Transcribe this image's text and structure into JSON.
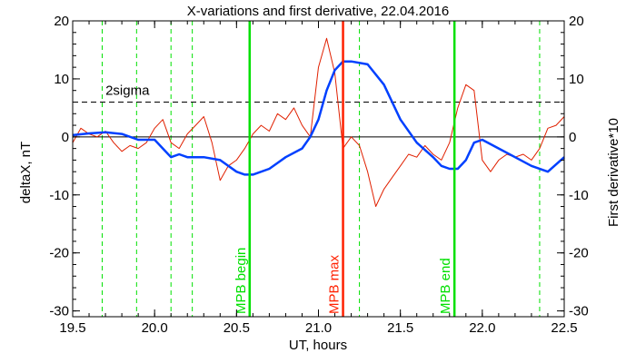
{
  "chart_data": {
    "type": "line",
    "title": "X-variations and first derivative, 22.04.2016",
    "xlabel": "UT, hours",
    "ylabel_left": "deltaX, nT",
    "ylabel_right": "First derivative*10",
    "xlim": [
      19.5,
      22.5
    ],
    "ylim": [
      -31,
      20
    ],
    "x_ticks": [
      {
        "v": 19.5,
        "label": "19.5"
      },
      {
        "v": 20.0,
        "label": "20.0"
      },
      {
        "v": 20.5,
        "label": "20.5"
      },
      {
        "v": 21.0,
        "label": "21.0"
      },
      {
        "v": 21.5,
        "label": "21.5"
      },
      {
        "v": 22.0,
        "label": "22.0"
      },
      {
        "v": 22.5,
        "label": "22.5"
      }
    ],
    "y_ticks": [
      {
        "v": 20,
        "label": "20"
      },
      {
        "v": 10,
        "label": "10"
      },
      {
        "v": 0,
        "label": "0"
      },
      {
        "v": -10,
        "label": "-10"
      },
      {
        "v": -20,
        "label": "-20"
      },
      {
        "v": -30,
        "label": "-30"
      }
    ],
    "colors": {
      "deltax": "#0040ff",
      "derivative": "#e02000",
      "mpb": "#00e000",
      "mpb_max": "#ff2000",
      "dashed_green": "#00e000",
      "right_axis_label": "#e02000"
    },
    "threshold": {
      "label": "2sigma",
      "y": 6
    },
    "zero_line": 0,
    "markers": [
      {
        "x": 20.58,
        "label": "MPB begin",
        "kind": "mpb"
      },
      {
        "x": 21.15,
        "label": "MPB max",
        "kind": "max"
      },
      {
        "x": 21.83,
        "label": "MPB end",
        "kind": "mpb"
      }
    ],
    "dashed_markers": [
      19.68,
      19.89,
      20.1,
      20.23,
      21.25,
      22.35
    ],
    "series": [
      {
        "key": "deltax",
        "x": [
          19.5,
          19.6,
          19.7,
          19.8,
          19.9,
          20.0,
          20.05,
          20.1,
          20.15,
          20.2,
          20.3,
          20.4,
          20.5,
          20.55,
          20.6,
          20.7,
          20.75,
          20.8,
          20.9,
          20.95,
          21.0,
          21.05,
          21.1,
          21.15,
          21.2,
          21.3,
          21.4,
          21.5,
          21.6,
          21.7,
          21.75,
          21.8,
          21.85,
          21.9,
          21.95,
          22.0,
          22.1,
          22.2,
          22.3,
          22.4,
          22.5
        ],
        "y": [
          0.3,
          0.6,
          0.8,
          0.5,
          -0.5,
          -0.5,
          -2.0,
          -3.5,
          -3.0,
          -3.5,
          -3.5,
          -4.0,
          -6.0,
          -6.5,
          -6.5,
          -5.5,
          -4.5,
          -3.5,
          -2.0,
          0.0,
          3.0,
          8.0,
          11.5,
          13.0,
          13.0,
          12.5,
          9.0,
          3.0,
          -1.0,
          -3.5,
          -5.0,
          -5.5,
          -5.5,
          -4.0,
          -1.0,
          -0.5,
          -2.0,
          -3.5,
          -5.0,
          -6.0,
          -3.5
        ]
      },
      {
        "key": "derivative",
        "x": [
          19.5,
          19.55,
          19.6,
          19.65,
          19.7,
          19.75,
          19.8,
          19.85,
          19.9,
          19.95,
          20.0,
          20.05,
          20.1,
          20.15,
          20.2,
          20.25,
          20.3,
          20.35,
          20.4,
          20.45,
          20.5,
          20.55,
          20.6,
          20.65,
          20.7,
          20.75,
          20.8,
          20.85,
          20.9,
          20.95,
          21.0,
          21.05,
          21.1,
          21.15,
          21.2,
          21.25,
          21.3,
          21.35,
          21.4,
          21.45,
          21.5,
          21.55,
          21.6,
          21.65,
          21.7,
          21.75,
          21.8,
          21.85,
          21.9,
          21.95,
          22.0,
          22.05,
          22.1,
          22.15,
          22.2,
          22.25,
          22.3,
          22.35,
          22.4,
          22.45,
          22.5
        ],
        "y": [
          -1.0,
          1.5,
          0.5,
          0.0,
          1.0,
          -1.0,
          -2.5,
          -1.5,
          -2.0,
          -1.0,
          1.5,
          3.0,
          -1.0,
          -2.0,
          0.5,
          2.0,
          3.5,
          -1.0,
          -7.5,
          -5.0,
          -4.0,
          -2.0,
          0.5,
          2.0,
          1.0,
          4.0,
          3.0,
          5.0,
          2.0,
          0.0,
          12.0,
          17.0,
          11.0,
          -2.0,
          0.0,
          -1.5,
          -6.0,
          -12.0,
          -9.0,
          -7.0,
          -5.0,
          -3.0,
          -3.5,
          -1.5,
          -3.0,
          -4.0,
          -1.0,
          5.0,
          9.0,
          8.0,
          -4.0,
          -6.0,
          -4.0,
          -3.0,
          -3.5,
          -3.0,
          -4.0,
          -2.0,
          1.5,
          2.0,
          3.5
        ]
      }
    ]
  }
}
